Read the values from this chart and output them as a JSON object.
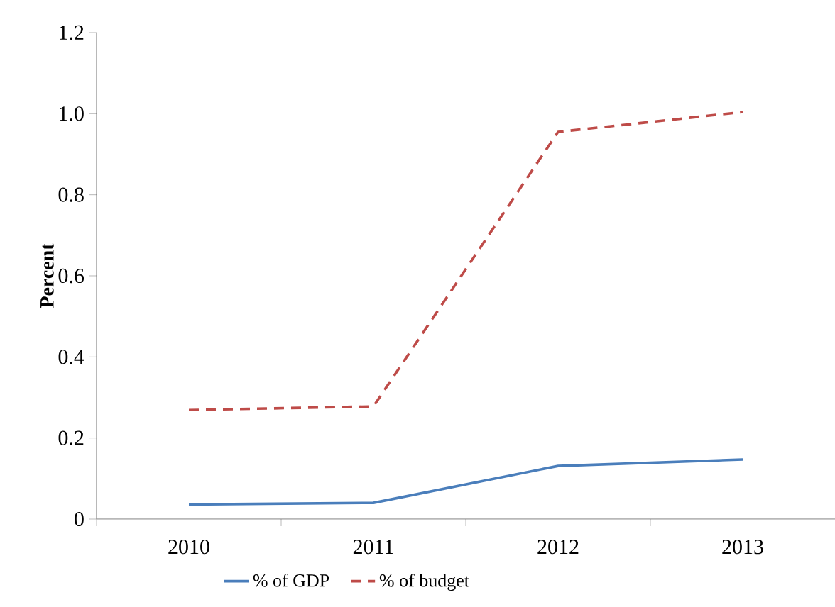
{
  "chart_data": {
    "type": "line",
    "ylabel": "Percent",
    "categories": [
      "2010",
      "2011",
      "2012",
      "2013"
    ],
    "series": [
      {
        "name": "% of GDP",
        "color": "#4a7ebb",
        "line_style": "solid",
        "values": [
          0.036,
          0.04,
          0.131,
          0.147
        ]
      },
      {
        "name": "% of budget",
        "color": "#be4b48",
        "line_style": "dashed",
        "values": [
          0.269,
          0.278,
          0.955,
          1.004
        ]
      }
    ],
    "ylim": [
      0,
      1.2
    ],
    "yticks": [
      {
        "value": 0,
        "label": "0"
      },
      {
        "value": 0.2,
        "label": "0.2"
      },
      {
        "value": 0.4,
        "label": "0.4"
      },
      {
        "value": 0.6,
        "label": "0.6"
      },
      {
        "value": 0.8,
        "label": "0.8"
      },
      {
        "value": 1.0,
        "label": "1.0"
      },
      {
        "value": 1.2,
        "label": "1.2"
      }
    ],
    "grid": false,
    "legend": "bottom",
    "marker": "none"
  }
}
